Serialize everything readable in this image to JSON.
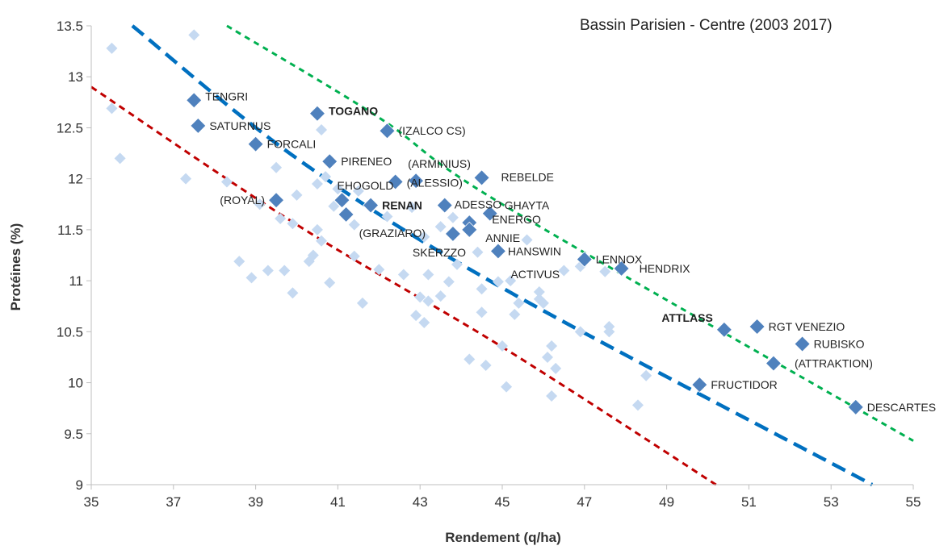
{
  "chart_data": {
    "type": "scatter",
    "title": "Bassin Parisien - Centre (2003 2017)",
    "xlabel": "Rendement (q/ha)",
    "ylabel": "Protéines (%)",
    "xlim": [
      35,
      55
    ],
    "ylim": [
      9,
      13.5
    ],
    "x_ticks": [
      "35",
      "37",
      "39",
      "41",
      "43",
      "45",
      "47",
      "49",
      "51",
      "53",
      "55"
    ],
    "y_ticks": [
      "9",
      "9.5",
      "10",
      "10.5",
      "11",
      "11.5",
      "12",
      "12.5",
      "13",
      "13.5"
    ],
    "grid": false,
    "colors": {
      "background_points": "#c5d9f1",
      "highlighted_points": "#4f81bd",
      "curve_low": "#c00000",
      "curve_mid": "#0070c0",
      "curve_high": "#00b050"
    },
    "highlighted_points": [
      {
        "label": "TENGRI",
        "x": 37.5,
        "y": 12.77,
        "bold": false
      },
      {
        "label": "SATURNUS",
        "x": 37.6,
        "y": 12.52,
        "bold": false
      },
      {
        "label": "TOGANO",
        "x": 40.5,
        "y": 12.64,
        "bold": true
      },
      {
        "label": "(IZALCO CS)",
        "x": 42.2,
        "y": 12.47,
        "bold": false
      },
      {
        "label": "FORCALI",
        "x": 39.0,
        "y": 12.34,
        "bold": false
      },
      {
        "label": "PIRENEO",
        "x": 40.8,
        "y": 12.17,
        "bold": false
      },
      {
        "label": "(ARMINIUS)",
        "x": 42.9,
        "y": 11.98,
        "bold": false
      },
      {
        "label": "(ALESSIO)",
        "x": 42.4,
        "y": 11.97,
        "bold": false
      },
      {
        "label": "REBELDE",
        "x": 44.5,
        "y": 12.01,
        "bold": false
      },
      {
        "label": "(ROYAL)",
        "x": 39.5,
        "y": 11.79,
        "bold": false
      },
      {
        "label": "EHOGOLD",
        "x": 41.1,
        "y": 11.79,
        "bold": false
      },
      {
        "label": "RENAN",
        "x": 41.8,
        "y": 11.74,
        "bold": true
      },
      {
        "label": "ADESSO",
        "x": 43.6,
        "y": 11.74,
        "bold": false
      },
      {
        "label": "GHAYTA",
        "x": 44.7,
        "y": 11.66,
        "bold": false
      },
      {
        "label": "(GRAZIARO)",
        "x": 41.2,
        "y": 11.65,
        "bold": false
      },
      {
        "label": "ENERGO",
        "x": 44.2,
        "y": 11.57,
        "bold": false
      },
      {
        "label": "ANNIE",
        "x": 44.2,
        "y": 11.5,
        "bold": false
      },
      {
        "label": "SKERZZO",
        "x": 43.8,
        "y": 11.46,
        "bold": false
      },
      {
        "label": "HANSWIN",
        "x": 44.9,
        "y": 11.29,
        "bold": false
      },
      {
        "label": "LENNOX",
        "x": 47.0,
        "y": 11.21,
        "bold": false
      },
      {
        "label": "HENDRIX",
        "x": 47.9,
        "y": 11.12,
        "bold": false
      },
      {
        "label": "ATTLASS",
        "x": 50.4,
        "y": 10.52,
        "bold": true
      },
      {
        "label": "RGT VENEZIO",
        "x": 51.2,
        "y": 10.55,
        "bold": false
      },
      {
        "label": "RUBISKO",
        "x": 52.3,
        "y": 10.38,
        "bold": false
      },
      {
        "label": "(ATTRAKTION)",
        "x": 51.6,
        "y": 10.19,
        "bold": false
      },
      {
        "label": "FRUCTIDOR",
        "x": 49.8,
        "y": 9.98,
        "bold": false
      },
      {
        "label": "DESCARTES",
        "x": 53.6,
        "y": 9.76,
        "bold": false
      }
    ],
    "unlabeled_labels": [
      {
        "label": "ACTIVUS",
        "x": 45.5,
        "y": 11.0
      }
    ],
    "background_points": [
      [
        35.5,
        13.28
      ],
      [
        37.5,
        13.41
      ],
      [
        35.5,
        12.69
      ],
      [
        35.7,
        12.2
      ],
      [
        37.3,
        12.0
      ],
      [
        38.3,
        11.97
      ],
      [
        39.5,
        12.11
      ],
      [
        40.5,
        11.95
      ],
      [
        40.6,
        12.48
      ],
      [
        40.7,
        12.02
      ],
      [
        41.0,
        11.9
      ],
      [
        41.5,
        11.88
      ],
      [
        40.0,
        11.84
      ],
      [
        39.1,
        11.75
      ],
      [
        40.9,
        11.73
      ],
      [
        41.4,
        11.55
      ],
      [
        39.6,
        11.61
      ],
      [
        39.9,
        11.56
      ],
      [
        40.5,
        11.5
      ],
      [
        40.6,
        11.39
      ],
      [
        41.4,
        11.24
      ],
      [
        40.3,
        11.19
      ],
      [
        40.4,
        11.25
      ],
      [
        38.6,
        11.19
      ],
      [
        39.3,
        11.1
      ],
      [
        39.7,
        11.1
      ],
      [
        38.9,
        11.03
      ],
      [
        39.9,
        10.88
      ],
      [
        40.8,
        10.98
      ],
      [
        42.0,
        11.11
      ],
      [
        41.6,
        10.78
      ],
      [
        42.6,
        11.06
      ],
      [
        43.1,
        11.43
      ],
      [
        43.5,
        11.53
      ],
      [
        43.8,
        11.62
      ],
      [
        43.9,
        11.16
      ],
      [
        43.2,
        11.06
      ],
      [
        43.5,
        10.85
      ],
      [
        43.0,
        10.84
      ],
      [
        43.2,
        10.8
      ],
      [
        43.7,
        10.99
      ],
      [
        42.9,
        10.66
      ],
      [
        43.1,
        10.59
      ],
      [
        44.2,
        10.23
      ],
      [
        44.5,
        10.92
      ],
      [
        44.5,
        10.69
      ],
      [
        44.9,
        10.99
      ],
      [
        45.2,
        11.0
      ],
      [
        45.4,
        10.78
      ],
      [
        45.3,
        10.67
      ],
      [
        45.0,
        10.36
      ],
      [
        44.6,
        10.17
      ],
      [
        45.1,
        9.96
      ],
      [
        45.9,
        10.89
      ],
      [
        45.9,
        10.82
      ],
      [
        46.0,
        10.78
      ],
      [
        46.1,
        10.25
      ],
      [
        46.2,
        10.36
      ],
      [
        46.3,
        10.14
      ],
      [
        46.2,
        9.87
      ],
      [
        46.5,
        11.1
      ],
      [
        46.9,
        11.14
      ],
      [
        46.9,
        10.5
      ],
      [
        47.5,
        11.09
      ],
      [
        47.6,
        10.55
      ],
      [
        47.6,
        10.5
      ],
      [
        48.5,
        10.07
      ],
      [
        48.3,
        9.78
      ],
      [
        44.4,
        11.28
      ],
      [
        45.6,
        11.4
      ],
      [
        42.2,
        11.63
      ],
      [
        42.8,
        11.72
      ]
    ],
    "fitted_curves": [
      {
        "color_key": "curve_low",
        "points": [
          [
            35.0,
            12.9
          ],
          [
            40.0,
            11.55
          ],
          [
            45.0,
            10.35
          ],
          [
            50.2,
            9.0
          ]
        ]
      },
      {
        "color_key": "curve_mid",
        "points": [
          [
            36.0,
            13.5
          ],
          [
            40.0,
            12.2
          ],
          [
            45.0,
            10.93
          ],
          [
            54.0,
            9.0
          ]
        ]
      },
      {
        "color_key": "curve_high",
        "points": [
          [
            38.3,
            13.5
          ],
          [
            42.0,
            12.6
          ],
          [
            45.0,
            11.75
          ],
          [
            55.0,
            9.43
          ]
        ]
      }
    ]
  }
}
